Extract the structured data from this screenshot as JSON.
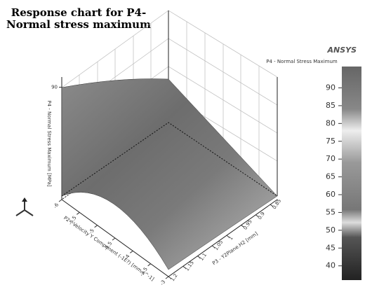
{
  "chart_data": {
    "type": "surface",
    "title": [
      "Response chart for P4-",
      "Normal stress maximum"
    ],
    "logo": "ANSYS",
    "colorbar_title": "P4 - Normal Stress Maximum",
    "zlabel": "P4 - Normal Stress Maximum [MPa]",
    "xlabel": "P2 - Velocity Y Component (-1E?) [mm s^-1]",
    "ylabel": "P3 - Y2Plane.H2 [mm]",
    "zlim": [
      35,
      95
    ],
    "zticks": [
      90
    ],
    "xlim": [
      -6,
      -3
    ],
    "xticks": [
      -6,
      -5.5,
      -5,
      -4.5,
      -4,
      -3.5,
      -3
    ],
    "ylim": [
      0.85,
      1.2
    ],
    "yticks": [
      0.85,
      0.9,
      0.95,
      1,
      1.05,
      1.1,
      1.15,
      1.2
    ],
    "clim": [
      36,
      96
    ],
    "cticks": [
      40,
      45,
      50,
      55,
      60,
      65,
      70,
      75,
      80,
      85,
      90
    ]
  }
}
